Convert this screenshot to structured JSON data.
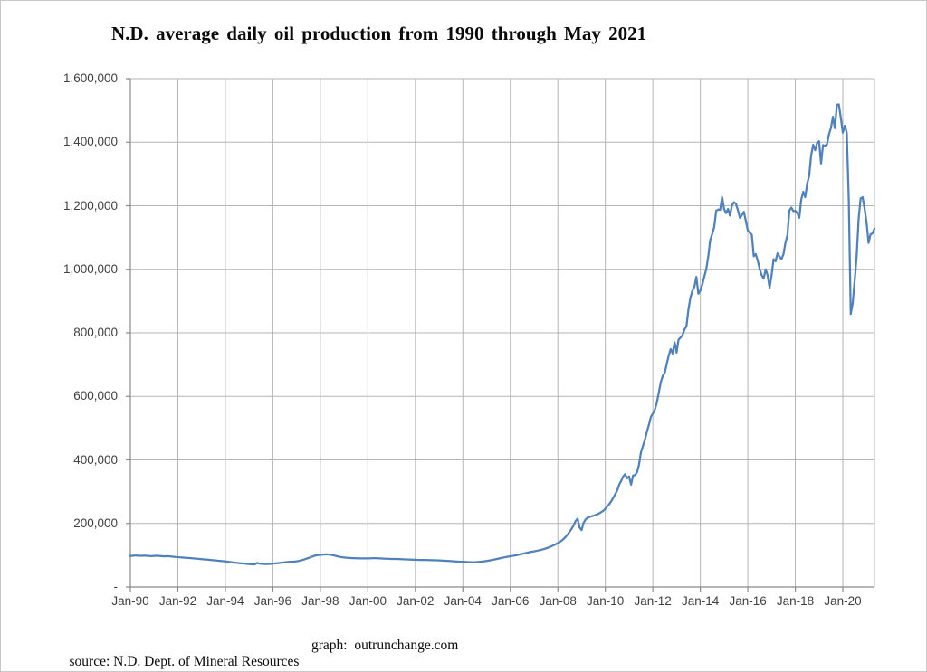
{
  "title": {
    "text": "N.D. average daily oil production from 1990 through May 2021"
  },
  "footer": {
    "source": "source: N.D. Dept. of Mineral Resources",
    "credit": "graph:  outrunchange.com"
  },
  "chart_data": {
    "type": "line",
    "title": "N.D. average daily oil production from 1990 through May 2021",
    "xlabel": "",
    "ylabel": "",
    "x_interval": "monthly",
    "x_start": "Jan-1990",
    "x_end": "May-2021",
    "ylim": [
      0,
      1600000
    ],
    "grid": true,
    "legend_position": "none",
    "x_tick_labels": [
      "Jan-90",
      "Jan-92",
      "Jan-94",
      "Jan-96",
      "Jan-98",
      "Jan-00",
      "Jan-02",
      "Jan-04",
      "Jan-06",
      "Jan-08",
      "Jan-10",
      "Jan-12",
      "Jan-14",
      "Jan-16",
      "Jan-18",
      "Jan-20"
    ],
    "y_tick_values": [
      0,
      200000,
      400000,
      600000,
      800000,
      1000000,
      1200000,
      1400000,
      1600000
    ],
    "y_tick_labels": [
      "-",
      "200,000",
      "400,000",
      "600,000",
      "800,000",
      "1,000,000",
      "1,200,000",
      "1,400,000",
      "1,600,000"
    ],
    "colors": {
      "series_line": "#4f81bd",
      "gridline": "#b5b5b5",
      "axis": "#8a8a8a",
      "tick_label": "#3f3f3f"
    },
    "series": [
      {
        "name": "N.D. average daily oil production (barrels per day)",
        "color": "#4f81bd",
        "values": [
          97500,
          98200,
          98800,
          99000,
          98600,
          98200,
          98400,
          98800,
          98400,
          97900,
          97600,
          97300,
          97800,
          98300,
          98100,
          97500,
          97000,
          96600,
          96900,
          97100,
          96400,
          95700,
          95100,
          94500,
          93900,
          93400,
          93000,
          92500,
          91900,
          91400,
          91000,
          90500,
          89900,
          89300,
          88800,
          88200,
          87700,
          87200,
          86600,
          86000,
          85400,
          84800,
          84200,
          83500,
          82900,
          82300,
          81700,
          81100,
          80400,
          79600,
          78800,
          78000,
          77200,
          76500,
          75800,
          75100,
          74500,
          73900,
          73300,
          72700,
          72100,
          71500,
          71300,
          71600,
          75800,
          73900,
          73000,
          72500,
          72300,
          72400,
          72700,
          73100,
          73500,
          74000,
          74600,
          75300,
          76100,
          76900,
          77600,
          78300,
          78900,
          79400,
          79800,
          80200,
          80900,
          82000,
          83400,
          85100,
          87000,
          89100,
          91300,
          93600,
          95900,
          98200,
          99800,
          100600,
          101100,
          101700,
          102500,
          103000,
          102600,
          101700,
          100500,
          99100,
          97600,
          96100,
          94800,
          93700,
          92900,
          92300,
          91800,
          91300,
          90900,
          90600,
          90400,
          90300,
          90200,
          90100,
          90000,
          89900,
          90000,
          90200,
          90500,
          90700,
          90600,
          90300,
          90000,
          89700,
          89400,
          89100,
          88800,
          88500,
          88300,
          88200,
          88100,
          88000,
          87800,
          87600,
          87300,
          87000,
          86700,
          86400,
          86100,
          85800,
          85600,
          85400,
          85200,
          85100,
          85000,
          84900,
          84800,
          84700,
          84500,
          84300,
          84100,
          83900,
          83600,
          83300,
          83000,
          82600,
          82200,
          81800,
          81400,
          81000,
          80600,
          80200,
          79800,
          79500,
          79200,
          78900,
          78600,
          78300,
          78100,
          78000,
          78100,
          78400,
          78900,
          79500,
          80200,
          81000,
          81900,
          82900,
          84000,
          85200,
          86500,
          87900,
          89300,
          90700,
          92100,
          93400,
          94600,
          95700,
          96700,
          97700,
          98800,
          100000,
          101300,
          102700,
          104200,
          105700,
          107200,
          108600,
          109900,
          111100,
          112200,
          113400,
          114700,
          116100,
          117700,
          119500,
          121500,
          123700,
          126200,
          128900,
          131800,
          134900,
          138200,
          141700,
          146200,
          151700,
          158200,
          165700,
          174200,
          183700,
          194200,
          208000,
          215000,
          187000,
          179000,
          202000,
          212000,
          218000,
          220500,
          222500,
          224500,
          226500,
          229000,
          232000,
          236000,
          240000,
          246000,
          254000,
          261000,
          270000,
          281000,
          292000,
          304000,
          322000,
          334000,
          348000,
          355000,
          342000,
          348000,
          322000,
          351000,
          352000,
          361000,
          385000,
          424000,
          444000,
          464000,
          488000,
          510000,
          535000,
          546000,
          558000,
          580000,
          611000,
          644000,
          664000,
          674000,
          701000,
          728000,
          749000,
          735000,
          770000,
          738000,
          779000,
          785000,
          793000,
          811000,
          821000,
          874000,
          911000,
          932000,
          945000,
          976000,
          923000,
          933000,
          952000,
          977000,
          1001000,
          1040000,
          1092000,
          1111000,
          1133000,
          1184000,
          1188000,
          1187000,
          1227000,
          1190000,
          1177000,
          1190000,
          1169000,
          1202000,
          1211000,
          1206000,
          1186000,
          1162000,
          1171000,
          1181000,
          1152000,
          1122000,
          1115000,
          1109000,
          1041000,
          1048000,
          1027000,
          1001000,
          981000,
          971000,
          1000000,
          981000,
          942000,
          981000,
          1032000,
          1025000,
          1050000,
          1040000,
          1032000,
          1047000,
          1083000,
          1107000,
          1185000,
          1194000,
          1183000,
          1184000,
          1177000,
          1162000,
          1220000,
          1244000,
          1227000,
          1270000,
          1294000,
          1359000,
          1392000,
          1375000,
          1398000,
          1403000,
          1333000,
          1391000,
          1388000,
          1394000,
          1425000,
          1445000,
          1480000,
          1444000,
          1518000,
          1519000,
          1476000,
          1430000,
          1452000,
          1430000,
          1221000,
          859000,
          893000,
          965000,
          1042000,
          1160000,
          1223000,
          1227000,
          1191000,
          1147000,
          1083000,
          1110000,
          1113000,
          1128000
        ]
      }
    ]
  }
}
